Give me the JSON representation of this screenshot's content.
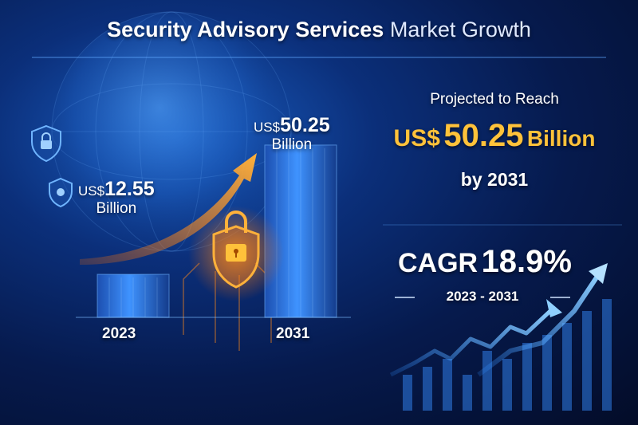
{
  "chart_data": {
    "type": "bar",
    "title": "Security Advisory Services Market Growth",
    "title_bold": "Security Advisory Services",
    "title_light": "Market Growth",
    "categories": [
      "2023",
      "2031"
    ],
    "values": [
      12.55,
      50.25
    ],
    "currency": "US$",
    "unit": "Billion",
    "value_labels": [
      {
        "currency": "US$",
        "value": "12.55",
        "unit": "Billion"
      },
      {
        "currency": "US$",
        "value": "50.25",
        "unit": "Billion"
      }
    ],
    "ylim": [
      0,
      60
    ],
    "grid": false,
    "bar_color": "#2d7be8",
    "arrow_color": "#ff8a1a",
    "annotations": {
      "projection_label": "Projected to Reach",
      "projection_currency": "US$",
      "projection_value": "50.25",
      "projection_unit": "Billion",
      "projection_by": "by 2031",
      "cagr_label": "CAGR",
      "cagr_value": "18.9%",
      "cagr_period": "2023 - 2031"
    }
  },
  "colors": {
    "background": "#061a4d",
    "accent": "#ffc23a",
    "text": "#ffffff"
  },
  "icons": [
    "shield-lock-icon",
    "globe-icon",
    "growth-arrow-icon",
    "padlock-icon"
  ]
}
